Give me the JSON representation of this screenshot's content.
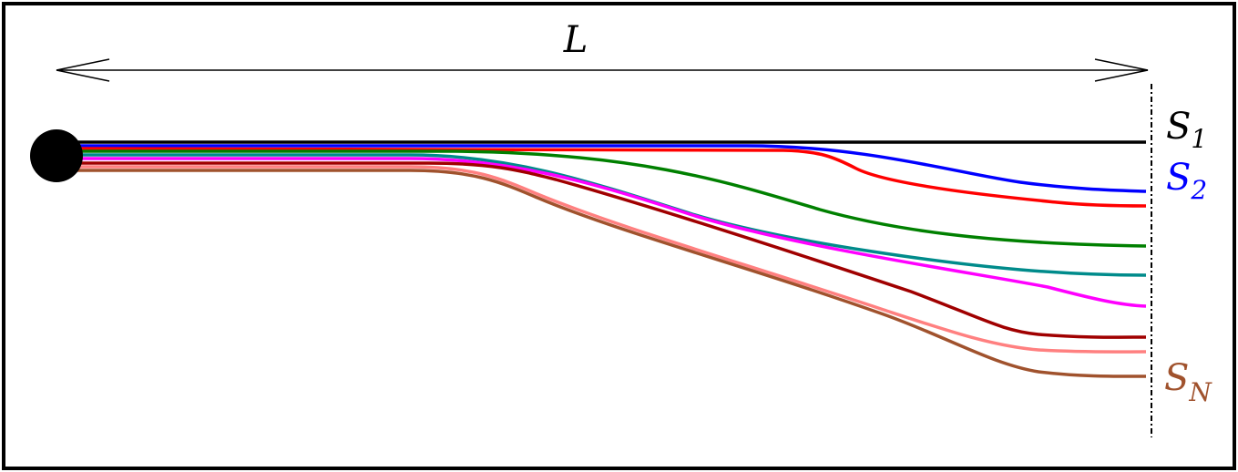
{
  "length_label": "L",
  "curve_labels": {
    "s1": {
      "base": "S",
      "sub": "1",
      "color": "#000000"
    },
    "s2": {
      "base": "S",
      "sub": "2",
      "color": "#0000ff"
    },
    "sn": {
      "base": "S",
      "sub": "N",
      "color": "#a0522d"
    }
  },
  "curves": [
    {
      "color": "#000000",
      "name": "curve-s1"
    },
    {
      "color": "#0000ff",
      "name": "curve-s2"
    },
    {
      "color": "#ff0000",
      "name": "curve-red"
    },
    {
      "color": "#008000",
      "name": "curve-green"
    },
    {
      "color": "#008b8b",
      "name": "curve-teal"
    },
    {
      "color": "#ff00ff",
      "name": "curve-magenta"
    },
    {
      "color": "#a00000",
      "name": "curve-darkred"
    },
    {
      "color": "#ff8080",
      "name": "curve-pink"
    },
    {
      "color": "#a0522d",
      "name": "curve-sn"
    }
  ]
}
